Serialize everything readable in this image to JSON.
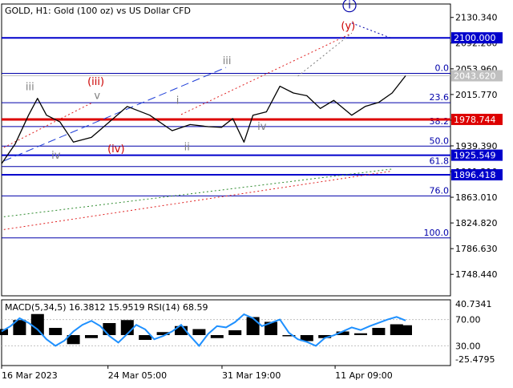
{
  "header": {
    "title": "GOLD, H1:  Gold (100 oz) vs US Dollar CFD"
  },
  "colors": {
    "background": "#ffffff",
    "text": "#000000",
    "price": "#000000",
    "grid": "#c0c0c0",
    "level_blue": "#0000cc",
    "level_red": "#dd0000",
    "fib_blue": "#0000aa",
    "wave_red": "#cc0000",
    "wave_gray": "#808080",
    "trend_blue_dash": "#1f3fd8",
    "trend_red_dot": "#e02020",
    "trend_green_dot": "#2e8b2e",
    "current_price_badge": "#c0c0c0",
    "macd_hist": "#000000",
    "rsi_line": "#1e90ff"
  },
  "chart_data": [
    {
      "type": "line",
      "panel": "price",
      "title": "GOLD, H1:  Gold (100 oz) vs US Dollar CFD",
      "x_labels": [
        "16 Mar 2023",
        "24 Mar 05:00",
        "31 Mar 19:00",
        "11 Apr 09:00"
      ],
      "x_label_positions": [
        0,
        0.237,
        0.491,
        0.743
      ],
      "price_scale_ticks": [
        "2130.340",
        "2092.260",
        "2053.960",
        "2015.770",
        "1977.560",
        "1939.390",
        "1901.210",
        "1863.010",
        "1824.820",
        "1786.630",
        "1748.440"
      ],
      "ylim": [
        1716.5,
        2150.3
      ],
      "series": [
        {
          "values_x": [
            0,
            0.03,
            0.06,
            0.08,
            0.1,
            0.13,
            0.16,
            0.2,
            0.24,
            0.28,
            0.33,
            0.38,
            0.42,
            0.46,
            0.49,
            0.515,
            0.54,
            0.56,
            0.59,
            0.62,
            0.65,
            0.68,
            0.71,
            0.74,
            0.78,
            0.81,
            0.84,
            0.87,
            0.9
          ],
          "values_y": [
            1913.0,
            1942.0,
            1985.0,
            2010.0,
            1985.0,
            1975.0,
            1945.0,
            1952.0,
            1975.0,
            1998.0,
            1985.0,
            1962.0,
            1971.0,
            1968.0,
            1967.0,
            1980.0,
            1945.0,
            1985.0,
            1990.0,
            2028.0,
            2018.0,
            2014.0,
            1995.0,
            2007.0,
            1985.0,
            1998.0,
            2004.0,
            2018.0,
            2043.62
          ]
        }
      ],
      "levels": [
        {
          "label": "2100.000",
          "price": 2100.0,
          "color": "#0000cc",
          "badge": true
        },
        {
          "label": "1978.744",
          "price": 1978.744,
          "color": "#dd0000",
          "badge": true
        },
        {
          "label": "1925.549",
          "price": 1925.549,
          "color": "#0000cc",
          "badge": true
        },
        {
          "label": "1896.418",
          "price": 1896.418,
          "color": "#0000cc",
          "badge": true
        }
      ],
      "current_price": {
        "label": "2043.620",
        "price": 2043.62
      },
      "fibonacci": [
        {
          "label": "0.0",
          "price": 2047.2
        },
        {
          "label": "23.6",
          "price": 2003.6
        },
        {
          "label": "38.2",
          "price": 1968.1
        },
        {
          "label": "50.0",
          "price": 1939.0
        },
        {
          "label": "61.8",
          "price": 1908.7
        },
        {
          "label": "76.0",
          "price": 1865.0
        },
        {
          "label": "100.0",
          "price": 1802.6
        }
      ],
      "wave_labels": [
        {
          "text": "iii",
          "x": 0.063,
          "price": 2022.0,
          "color": "#808080"
        },
        {
          "text": "(iii)",
          "x": 0.21,
          "price": 2030.0,
          "color": "#cc0000"
        },
        {
          "text": "v",
          "x": 0.213,
          "price": 2009.0,
          "color": "#808080"
        },
        {
          "text": "iv",
          "x": 0.121,
          "price": 1920.0,
          "color": "#808080"
        },
        {
          "text": "(iv)",
          "x": 0.255,
          "price": 1930.0,
          "color": "#cc0000"
        },
        {
          "text": "iii",
          "x": 0.502,
          "price": 2061.0,
          "color": "#808080"
        },
        {
          "text": "i",
          "x": 0.392,
          "price": 2002.0,
          "color": "#808080"
        },
        {
          "text": "ii",
          "x": 0.413,
          "price": 1933.0,
          "color": "#808080"
        },
        {
          "text": "iv",
          "x": 0.58,
          "price": 1963.0,
          "color": "#808080"
        },
        {
          "text": "(y)",
          "x": 0.772,
          "price": 2113.0,
          "color": "#cc0000"
        },
        {
          "text": "i",
          "x": 0.775,
          "price": 2143.5,
          "color": "#0000aa",
          "circled": true
        }
      ],
      "trend_lines": [
        {
          "style": "dash",
          "color": "#1f3fd8",
          "from": [
            0.005,
            1917.0
          ],
          "to": [
            0.5,
            2056.0
          ]
        },
        {
          "style": "dot",
          "color": "#e02020",
          "from": [
            0.005,
            1937.0
          ],
          "to": [
            0.2,
            2003.0
          ]
        },
        {
          "style": "dot",
          "color": "#e02020",
          "from": [
            0.4,
            1986.0
          ],
          "to": [
            0.78,
            2107.0
          ]
        },
        {
          "style": "dot",
          "color": "#808080",
          "from": [
            0.66,
            2043.0
          ],
          "to": [
            0.78,
            2107.0
          ]
        },
        {
          "style": "dot",
          "color": "#0000aa",
          "from": [
            0.78,
            2122.0
          ],
          "to": [
            0.87,
            2099.0
          ]
        },
        {
          "style": "dot",
          "color": "#2e8b2e",
          "from": [
            0.005,
            1834.0
          ],
          "to": [
            0.87,
            1905.0
          ]
        },
        {
          "style": "dot",
          "color": "#e02020",
          "from": [
            0.005,
            1815.0
          ],
          "to": [
            0.87,
            1902.0
          ]
        }
      ]
    },
    {
      "type": "line",
      "panel": "indicators",
      "title": "MACD(5,34,5) 16.3812 15.9519 RSI(14) 68.59",
      "scale_ticks": [
        "40.7341",
        "70.00",
        "30.00",
        "-25.4795"
      ],
      "ylim_rsi": [
        0,
        100
      ],
      "series": [
        {
          "name": "MACD",
          "style": "histogram",
          "values_x": [
            0.0,
            0.04,
            0.08,
            0.12,
            0.16,
            0.2,
            0.24,
            0.28,
            0.32,
            0.36,
            0.4,
            0.44,
            0.48,
            0.52,
            0.56,
            0.6,
            0.64,
            0.68,
            0.72,
            0.76,
            0.8,
            0.84,
            0.88,
            0.9
          ],
          "values_y": [
            10.0,
            25.0,
            35.0,
            12.0,
            -15.0,
            -5.0,
            20.0,
            25.0,
            -8.0,
            5.0,
            15.0,
            10.0,
            -5.0,
            8.0,
            30.0,
            22.0,
            -2.0,
            -10.0,
            -5.0,
            6.0,
            3.0,
            12.0,
            18.0,
            16.38
          ]
        },
        {
          "name": "RSI",
          "style": "line",
          "values_x": [
            0.0,
            0.02,
            0.04,
            0.06,
            0.08,
            0.1,
            0.12,
            0.14,
            0.16,
            0.18,
            0.2,
            0.22,
            0.24,
            0.26,
            0.28,
            0.3,
            0.32,
            0.34,
            0.36,
            0.38,
            0.4,
            0.42,
            0.44,
            0.46,
            0.48,
            0.5,
            0.52,
            0.54,
            0.56,
            0.58,
            0.6,
            0.62,
            0.64,
            0.66,
            0.68,
            0.7,
            0.72,
            0.74,
            0.76,
            0.78,
            0.8,
            0.82,
            0.84,
            0.86,
            0.88,
            0.9
          ],
          "values_y": [
            52.0,
            60.0,
            72.0,
            65.0,
            55.0,
            40.0,
            30.0,
            38.0,
            52.0,
            62.0,
            68.0,
            60.0,
            45.0,
            35.0,
            48.0,
            62.0,
            55.0,
            40.0,
            45.0,
            52.0,
            62.0,
            45.0,
            30.0,
            48.0,
            60.0,
            58.0,
            66.0,
            78.0,
            72.0,
            60.0,
            65.0,
            70.0,
            50.0,
            40.0,
            36.0,
            30.0,
            42.0,
            46.0,
            52.0,
            58.0,
            54.0,
            60.0,
            65.0,
            70.0,
            74.0,
            68.59
          ]
        }
      ]
    }
  ]
}
